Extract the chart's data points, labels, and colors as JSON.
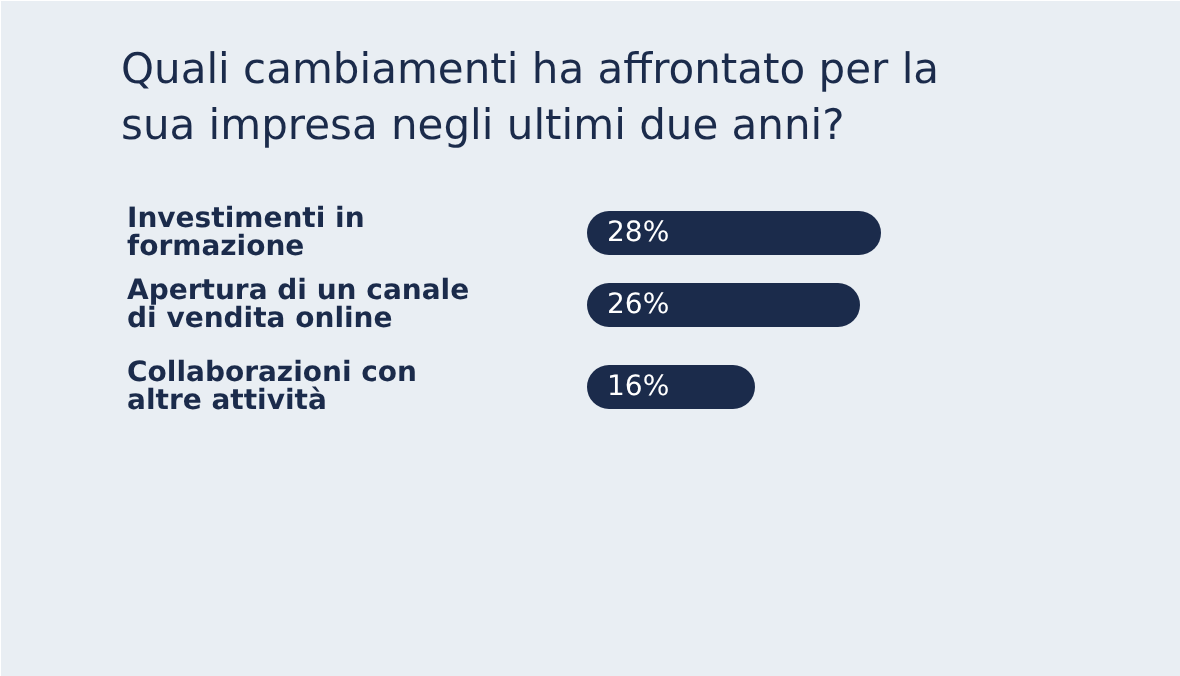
{
  "chart_data": {
    "type": "bar",
    "orientation": "horizontal",
    "title": "Quali cambiamenti ha affrontato per la sua impresa negli ultimi due anni?",
    "categories": [
      "Investimenti in formazione",
      "Apertura di un canale di vendita online",
      "Collaborazioni con altre attività"
    ],
    "values": [
      28,
      26,
      16
    ],
    "color": "#1b2b4b",
    "data_labels": true,
    "value_labels": [
      "28%",
      "26%",
      "16%"
    ]
  }
}
